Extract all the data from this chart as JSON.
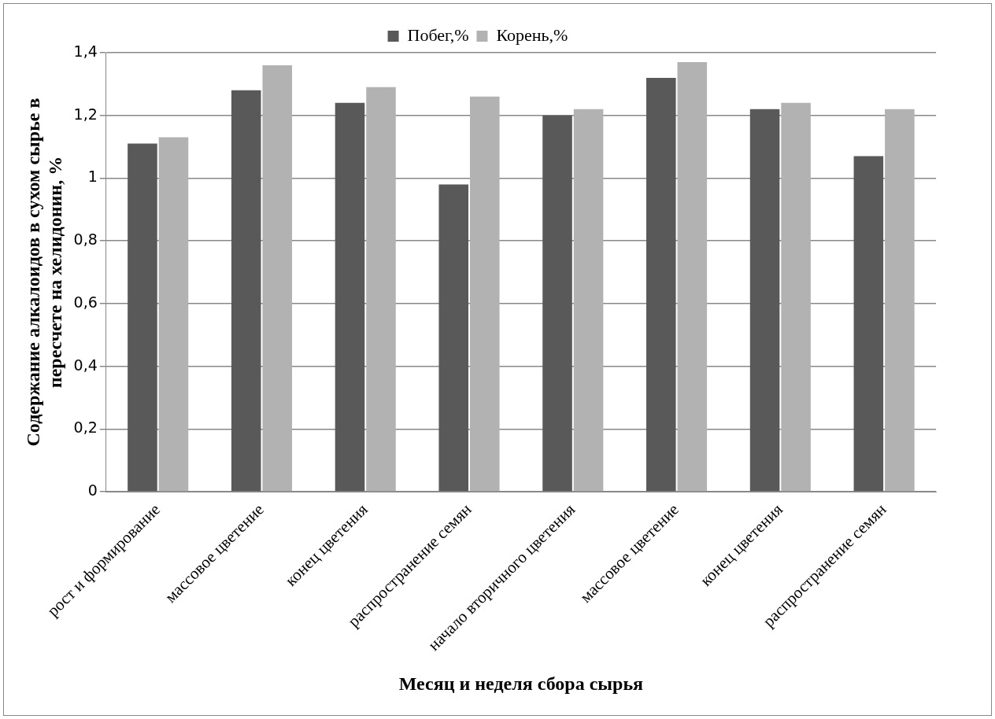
{
  "chart_data": {
    "type": "bar",
    "xlabel": "Месяц и неделя сбора сырья",
    "ylabel": "Содержание алкалоидов в сухом сырье в пересчете на хелидонин, %",
    "categories": [
      "рост и формирование",
      "массовое цветение",
      "конец цветения",
      "распространение семян",
      "начало вторичного цветения",
      "массовое цветение",
      "конец цветения",
      "распространение семян"
    ],
    "series": [
      {
        "name": "Побег,%",
        "color": "#595959",
        "values": [
          1.11,
          1.28,
          1.24,
          0.98,
          1.2,
          1.32,
          1.22,
          1.07
        ]
      },
      {
        "name": "Корень,%",
        "color": "#b2b2b2",
        "values": [
          1.13,
          1.36,
          1.29,
          1.26,
          1.22,
          1.37,
          1.24,
          1.22
        ]
      }
    ],
    "ylim": [
      0,
      1.4
    ],
    "yticks": [
      0,
      {
        "value": 0.2,
        "label": "0,2"
      },
      {
        "value": 0.4,
        "label": "0,4"
      },
      {
        "value": 0.6,
        "label": "0,6"
      },
      {
        "value": 0.8,
        "label": "0,8"
      },
      1,
      {
        "value": 1.2,
        "label": "1,2"
      },
      {
        "value": 1.4,
        "label": "1,4"
      }
    ],
    "grid": "y",
    "legend": "top"
  }
}
